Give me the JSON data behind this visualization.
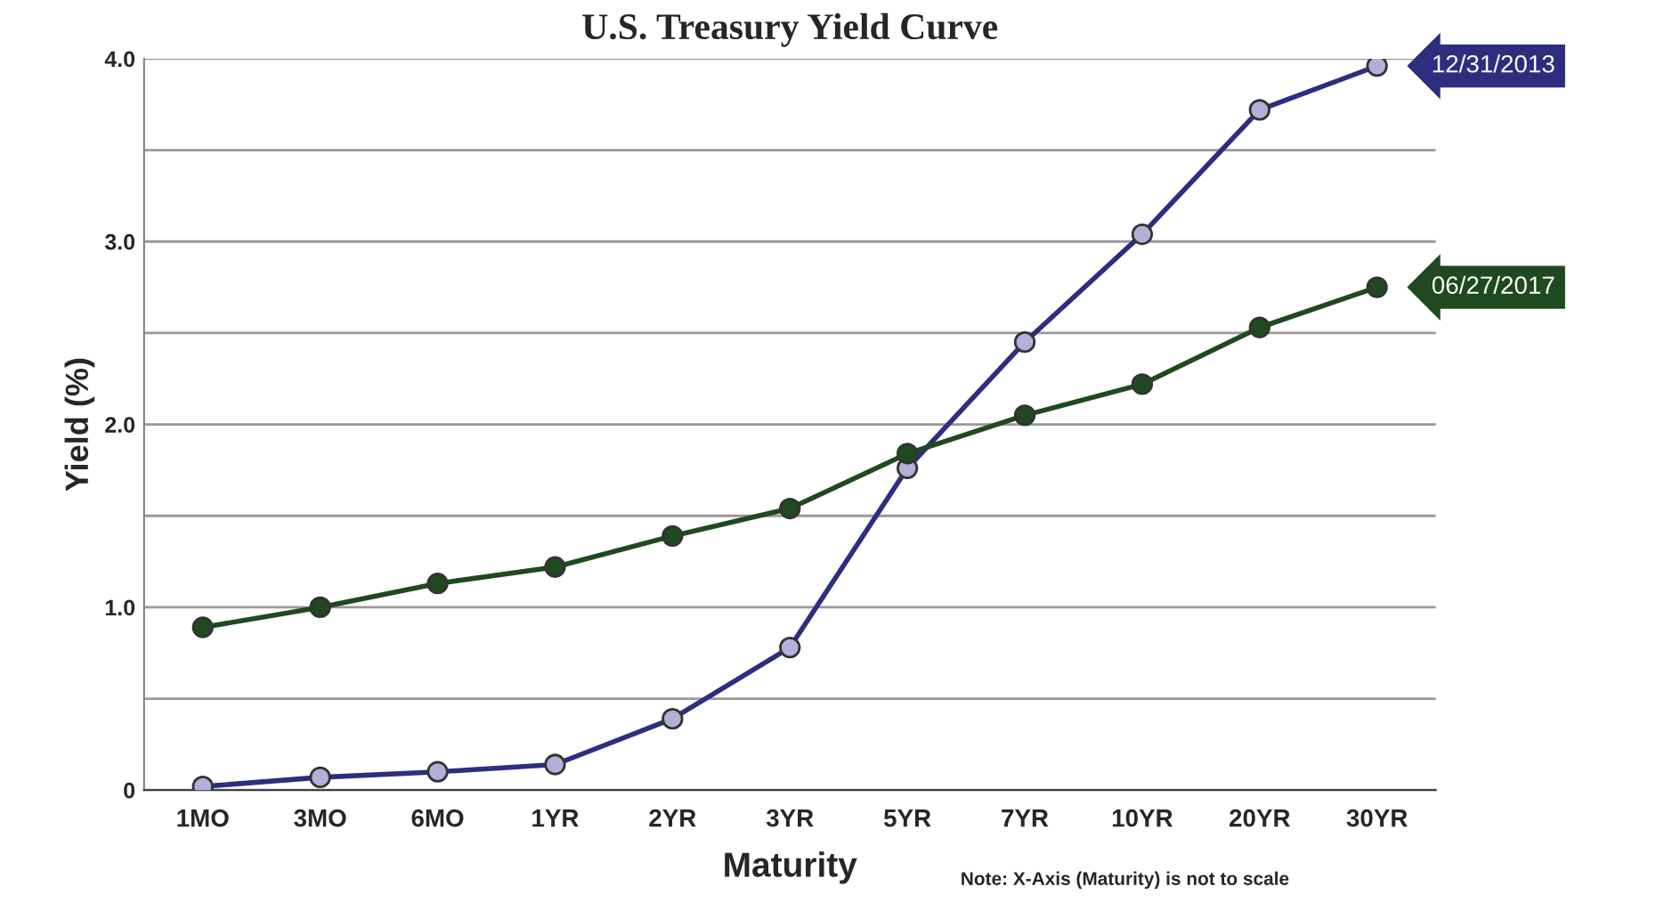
{
  "chart_data": {
    "type": "line",
    "title": "U.S. Treasury Yield Curve",
    "xlabel": "Maturity",
    "ylabel": "Yield (%)",
    "categories": [
      "1MO",
      "3MO",
      "6MO",
      "1YR",
      "2YR",
      "3YR",
      "5YR",
      "7YR",
      "10YR",
      "20YR",
      "30YR"
    ],
    "series": [
      {
        "name": "12/31/2013",
        "color": "#2e2e80",
        "values": [
          0.02,
          0.07,
          0.1,
          0.14,
          0.39,
          0.78,
          1.76,
          2.45,
          3.04,
          3.72,
          3.96
        ]
      },
      {
        "name": "06/27/2017",
        "color": "#1f4a1f",
        "values": [
          0.89,
          1.0,
          1.13,
          1.22,
          1.39,
          1.54,
          1.84,
          2.05,
          2.22,
          2.53,
          2.75
        ]
      }
    ],
    "ylim": [
      0,
      4.0
    ],
    "yticks": [
      {
        "value": 0,
        "label": "0"
      },
      {
        "value": 0.5,
        "label": null
      },
      {
        "value": 1.0,
        "label": "1.0"
      },
      {
        "value": 1.5,
        "label": null
      },
      {
        "value": 2.0,
        "label": "2.0"
      },
      {
        "value": 2.5,
        "label": null
      },
      {
        "value": 3.0,
        "label": "3.0"
      },
      {
        "value": 3.5,
        "label": null
      },
      {
        "value": 4.0,
        "label": "4.0"
      }
    ],
    "grid": "y",
    "legend": false,
    "marker": "circle",
    "line_style": "solid",
    "annotations": [
      "Note: X-Axis (Maturity) is not to scale"
    ]
  }
}
